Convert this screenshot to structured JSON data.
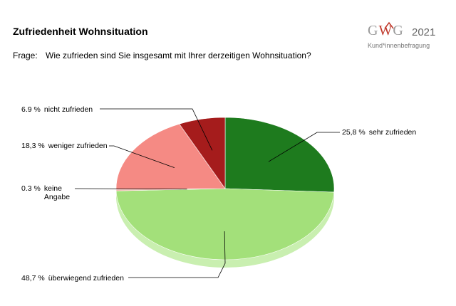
{
  "header": {
    "title": "Zufriedenheit Wohnsituation",
    "question_prefix": "Frage:",
    "question_text": "Wie zufrieden sind Sie insgesamt mit Ihrer derzeitigen Wohnsituation?"
  },
  "logo": {
    "brand_g1": "G",
    "brand_w": "W",
    "brand_g2": "G",
    "year": "2021",
    "subtitle": "Kund*innenbefragung"
  },
  "chart_data": {
    "type": "pie",
    "start_angle_deg": 0,
    "direction": "clockwise",
    "three_d": true,
    "slices": [
      {
        "name": "sehr zufrieden",
        "value": 25.8,
        "pct_label": "25,8 %",
        "color": "#1e7b1e",
        "side_color": "#155a15"
      },
      {
        "name": "überwiegend zufrieden",
        "value": 48.7,
        "pct_label": "48,7 %",
        "color": "#a3e07a",
        "side_color": "#c9efb0"
      },
      {
        "name": "keine Angabe",
        "value": 0.3,
        "pct_label": "0.3 %",
        "color": "#f5a9a0",
        "side_color": "#f0c0b8"
      },
      {
        "name": "weniger zufrieden",
        "value": 18.3,
        "pct_label": "18,3 %",
        "color": "#f58a84",
        "side_color": "#e07a74"
      },
      {
        "name": "nicht zufrieden",
        "value": 6.9,
        "pct_label": "6.9 %",
        "color": "#a51c1c",
        "side_color": "#7f1414"
      }
    ]
  }
}
